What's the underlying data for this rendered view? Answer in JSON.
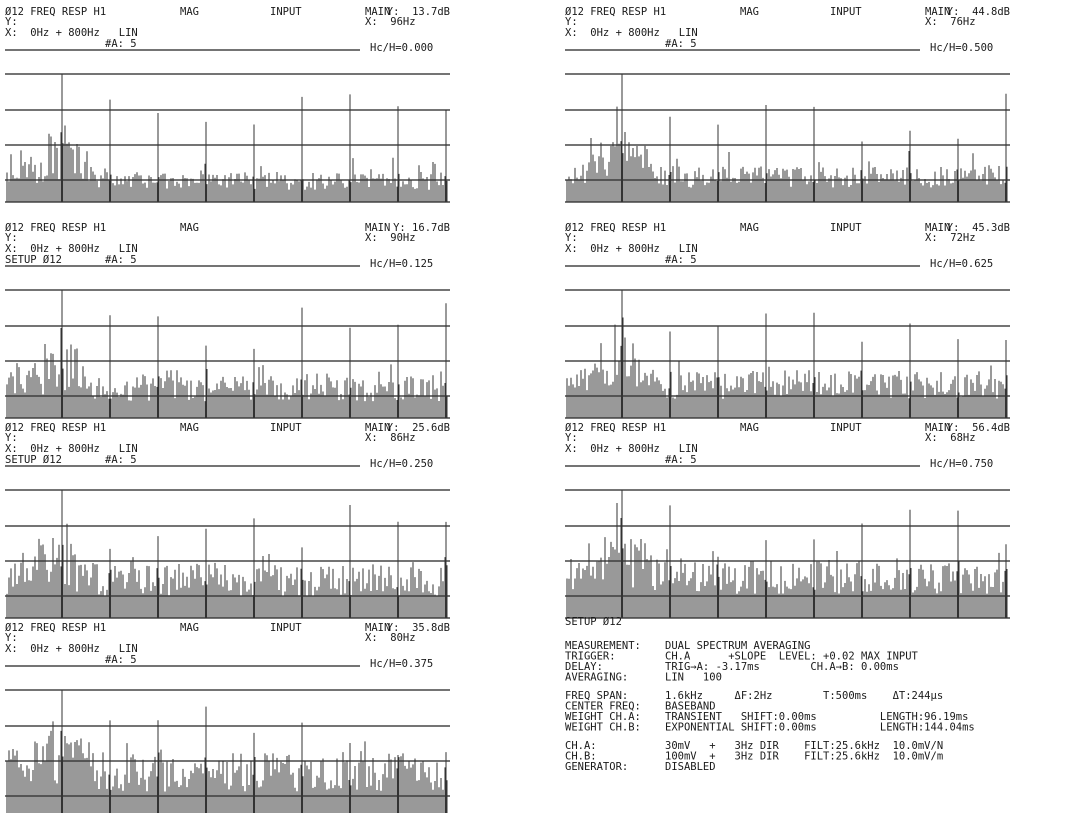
{
  "panels": [
    {
      "title": "Ø12 FREQ RESP H1",
      "mode": "MAG",
      "input": "INPUT",
      "main": "MAIN",
      "y_readout": "Y:  13.7dB",
      "y_axis": "Y:",
      "x_readout": "X:  96Hz",
      "range": "X:  0Hz + 800Hz   LIN",
      "avg": "#A: 5",
      "hc": "Hc/H=0.000"
    },
    {
      "title": "Ø12 FREQ RESP H1",
      "mode": "MAG",
      "input": "INPUT",
      "main": "MAIN",
      "y_readout": "Y:  44.8dB",
      "y_axis": "Y:",
      "x_readout": "X:  76Hz",
      "range": "X:  0Hz + 800Hz   LIN",
      "avg": "#A: 5",
      "hc": "Hc/H=0.500"
    },
    {
      "title": "Ø12 FREQ RESP H1",
      "mode": "MAG",
      "main": "MAIN",
      "y_readout": "Y: 16.7dB",
      "y_axis": "Y:",
      "x_readout": "X:  90Hz",
      "range": "X:  0Hz + 800Hz   LIN",
      "setup": "SETUP Ø12",
      "avg": "#A: 5",
      "hc": "Hc/H=0.125"
    },
    {
      "title": "Ø12 FREQ RESP H1",
      "mode": "MAG",
      "input": "INPUT",
      "main": "MAIN",
      "y_readout": "Y:  45.3dB",
      "y_axis": "Y:",
      "x_readout": "X:  72Hz",
      "range": "X:  0Hz + 800Hz   LIN",
      "avg": "#A: 5",
      "hc": "Hc/H=0.625"
    },
    {
      "title": "Ø12 FREQ RESP H1",
      "mode": "MAG",
      "input": "INPUT",
      "main": "MAIN",
      "y_readout": "Y:  25.6dB",
      "y_axis": "Y:",
      "x_readout": "X:  86Hz",
      "range": "X:  0Hz + 800Hz   LIN",
      "setup": "SETUP Ø12",
      "avg": "#A: 5",
      "hc": "Hc/H=0.250"
    },
    {
      "title": "Ø12 FREQ RESP H1",
      "mode": "MAG",
      "input": "INPUT",
      "main": "MAIN",
      "y_readout": "Y:  56.4dB",
      "y_axis": "Y:",
      "x_readout": "X:  68Hz",
      "range": "X:  0Hz + 800Hz   LIN",
      "avg": "#A: 5",
      "hc": "Hc/H=0.750"
    },
    {
      "title": "Ø12 FREQ RESP H1",
      "mode": "MAG",
      "input": "INPUT",
      "main": "MAIN",
      "y_readout": "Y:  35.8dB",
      "y_axis": "Y:",
      "x_readout": "X:  80Hz",
      "range": "X:  0Hz + 800Hz   LIN",
      "avg": "#A: 5",
      "hc": "Hc/H=0.375"
    }
  ],
  "setup": {
    "title": "SETUP Ø12",
    "groups": [
      [
        [
          "MEASUREMENT:",
          "DUAL SPECTRUM AVERAGING"
        ],
        [
          "TRIGGER:",
          "CH.A      +SLOPE  LEVEL: +0.02 MAX INPUT"
        ],
        [
          "DELAY:",
          "TRIG→A: -3.17ms        CH.A→B: 0.00ms"
        ],
        [
          "AVERAGING:",
          "LIN   100"
        ]
      ],
      [
        [
          "FREQ SPAN:",
          "1.6kHz     ΔF:2Hz        T:500ms    ΔT:244µs"
        ],
        [
          "CENTER FREQ:",
          "BASEBAND"
        ],
        [
          "WEIGHT CH.A:",
          "TRANSIENT   SHIFT:0.00ms          LENGTH:96.19ms"
        ],
        [
          "WEIGHT CH.B:",
          "EXPONENTIAL SHIFT:0.00ms          LENGTH:144.04ms"
        ]
      ],
      [
        [
          "CH.A:",
          "30mV   +   3Hz DIR    FILT:25.6kHz  10.0mV/N"
        ],
        [
          "CH.B:",
          "100mV  +   3Hz DIR    FILT:25.6kHz  10.0mV/m"
        ],
        [
          "GENERATOR:",
          "DISABLED"
        ]
      ]
    ]
  }
}
